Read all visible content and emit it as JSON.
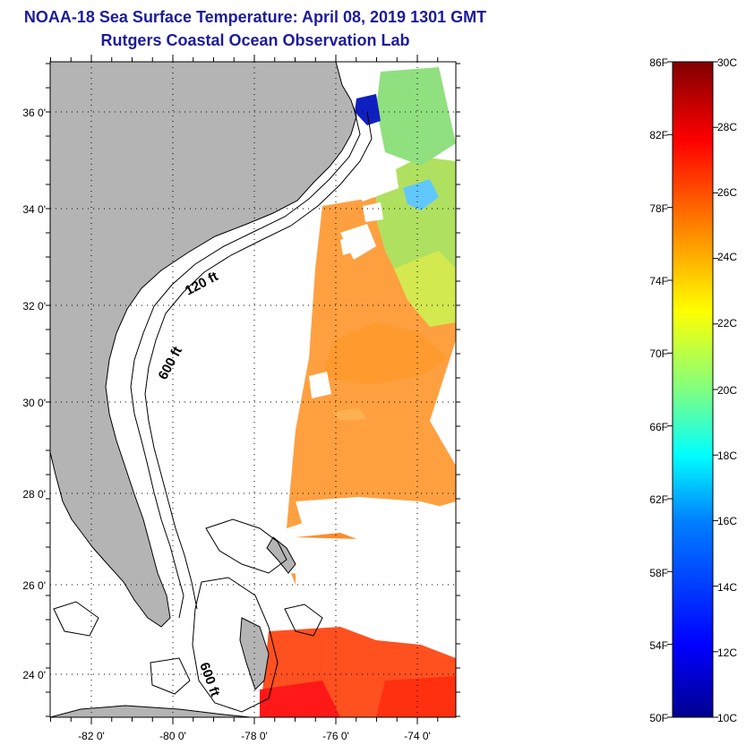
{
  "title": "NOAA-18 Sea Surface Temperature:  April 08, 2019 1301 GMT",
  "subtitle": "Rutgers Coastal Ocean Observation Lab",
  "map": {
    "lat_labels": [
      "36 0'",
      "34 0'",
      "32 0'",
      "30 0'",
      "28 0'",
      "26 0'",
      "24 0'"
    ],
    "lon_labels": [
      "-82 0'",
      "-80 0'",
      "-78 0'",
      "-76 0'",
      "-74 0'"
    ],
    "depth_labels": {
      "d120": "120 ft",
      "d600a": "600 ft",
      "d600b": "600 ft"
    },
    "land_color": "#b4b4b4",
    "grid": true
  },
  "colorbar": {
    "fahrenheit_labels": [
      "86F",
      "82F",
      "78F",
      "74F",
      "70F",
      "66F",
      "62F",
      "58F",
      "54F",
      "50F"
    ],
    "celsius_labels": [
      "30C",
      "28C",
      "26C",
      "24C",
      "22C",
      "20C",
      "18C",
      "16C",
      "14C",
      "12C",
      "10C"
    ],
    "colors": [
      "#00008f",
      "#0000ff",
      "#0080ff",
      "#00ffff",
      "#80ff80",
      "#ffff00",
      "#ff8000",
      "#ff0000",
      "#800000"
    ]
  }
}
